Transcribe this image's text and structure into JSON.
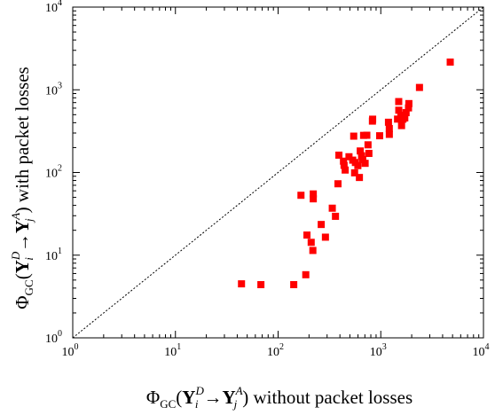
{
  "chart_data": {
    "type": "scatter",
    "x_scale": "log",
    "y_scale": "log",
    "xlim": [
      1,
      10000
    ],
    "ylim": [
      1,
      10000
    ],
    "x_ticks": [
      {
        "base": "10",
        "exp": "0"
      },
      {
        "base": "10",
        "exp": "1"
      },
      {
        "base": "10",
        "exp": "2"
      },
      {
        "base": "10",
        "exp": "3"
      },
      {
        "base": "10",
        "exp": "4"
      }
    ],
    "y_ticks": [
      {
        "base": "10",
        "exp": "0"
      },
      {
        "base": "10",
        "exp": "1"
      },
      {
        "base": "10",
        "exp": "2"
      },
      {
        "base": "10",
        "exp": "3"
      },
      {
        "base": "10",
        "exp": "4"
      }
    ],
    "xlabel": {
      "phi": "Φ",
      "gc": "GC",
      "open": "(",
      "y1": "Y",
      "y1_sup": "D",
      "y1_sub": "i",
      "arrow": "→",
      "y2": "Y",
      "y2_sup": "A",
      "y2_sub": "j",
      "close": ")",
      "text": " without packet losses"
    },
    "ylabel": {
      "phi": "Φ",
      "gc": "GC",
      "open": "(",
      "y1": "Y",
      "y1_sup": "D",
      "y1_sub": "i",
      "arrow": "→",
      "y2": "Y",
      "y2_sup": "A",
      "y2_sub": "j",
      "close": ")",
      "text": " with packet losses"
    },
    "reference_line": {
      "style": "dotted",
      "from": [
        1,
        1
      ],
      "to": [
        10000,
        10000
      ]
    },
    "marker_color": "#ff0000",
    "marker": "square",
    "grid": false,
    "points": [
      {
        "x": 44,
        "y": 4.5
      },
      {
        "x": 68,
        "y": 4.4
      },
      {
        "x": 142,
        "y": 4.4
      },
      {
        "x": 186,
        "y": 5.8
      },
      {
        "x": 167,
        "y": 53
      },
      {
        "x": 191,
        "y": 17.5
      },
      {
        "x": 210,
        "y": 14.3
      },
      {
        "x": 218,
        "y": 11.4
      },
      {
        "x": 220,
        "y": 55
      },
      {
        "x": 220,
        "y": 48
      },
      {
        "x": 263,
        "y": 23.5
      },
      {
        "x": 289,
        "y": 16.5
      },
      {
        "x": 337,
        "y": 37
      },
      {
        "x": 362,
        "y": 29.5
      },
      {
        "x": 383,
        "y": 73
      },
      {
        "x": 391,
        "y": 162
      },
      {
        "x": 433,
        "y": 137
      },
      {
        "x": 439,
        "y": 122
      },
      {
        "x": 450,
        "y": 107
      },
      {
        "x": 490,
        "y": 155
      },
      {
        "x": 533,
        "y": 141
      },
      {
        "x": 545,
        "y": 275
      },
      {
        "x": 556,
        "y": 99
      },
      {
        "x": 566,
        "y": 132
      },
      {
        "x": 598,
        "y": 121
      },
      {
        "x": 619,
        "y": 87
      },
      {
        "x": 631,
        "y": 182
      },
      {
        "x": 650,
        "y": 159
      },
      {
        "x": 667,
        "y": 143
      },
      {
        "x": 680,
        "y": 281
      },
      {
        "x": 704,
        "y": 129
      },
      {
        "x": 731,
        "y": 282
      },
      {
        "x": 751,
        "y": 216
      },
      {
        "x": 766,
        "y": 170
      },
      {
        "x": 829,
        "y": 418
      },
      {
        "x": 833,
        "y": 441
      },
      {
        "x": 975,
        "y": 278
      },
      {
        "x": 1188,
        "y": 405
      },
      {
        "x": 1210,
        "y": 340
      },
      {
        "x": 1211,
        "y": 289
      },
      {
        "x": 1456,
        "y": 442
      },
      {
        "x": 1495,
        "y": 720
      },
      {
        "x": 1497,
        "y": 566
      },
      {
        "x": 1569,
        "y": 492
      },
      {
        "x": 1593,
        "y": 369
      },
      {
        "x": 1644,
        "y": 441
      },
      {
        "x": 1713,
        "y": 457
      },
      {
        "x": 1764,
        "y": 529
      },
      {
        "x": 1862,
        "y": 604
      },
      {
        "x": 1878,
        "y": 681
      },
      {
        "x": 2381,
        "y": 1067
      },
      {
        "x": 4746,
        "y": 2162
      }
    ]
  }
}
